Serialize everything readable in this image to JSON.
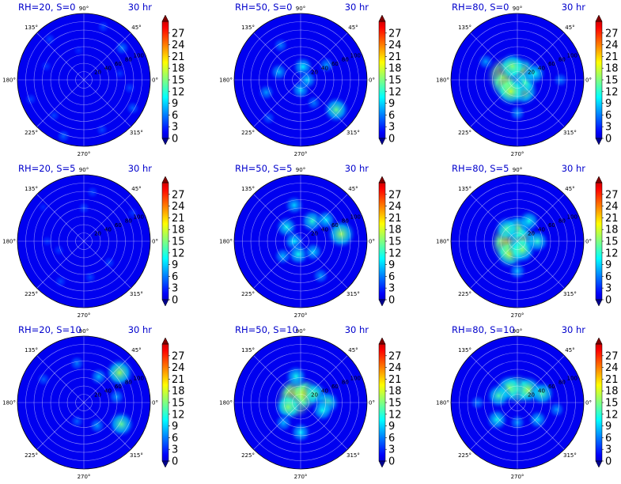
{
  "chart_data": {
    "type": "polar-heatmap",
    "layout": {
      "rows": 3,
      "cols": 3
    },
    "colormap": "jet",
    "colorbar": {
      "min": 0,
      "max": 30,
      "ticks": [
        "0",
        "3",
        "6",
        "9",
        "12",
        "15",
        "18",
        "21",
        "24",
        "27"
      ],
      "extend": "both"
    },
    "angle_labels": [
      "0°",
      "45°",
      "90°",
      "135°",
      "180°",
      "225°",
      "270°",
      "315°"
    ],
    "radial_tick_labels": [
      "20",
      "40",
      "60",
      "80",
      "100"
    ],
    "rings": 8,
    "panels": [
      {
        "title": "RH=20, S=0",
        "time": "30 hr",
        "rh": 20,
        "s": 0,
        "blobs": [
          [
            130,
            80,
            3
          ],
          [
            40,
            75,
            5
          ],
          [
            330,
            85,
            4
          ],
          [
            230,
            70,
            3
          ],
          [
            160,
            60,
            2.5
          ],
          [
            70,
            85,
            3
          ],
          [
            290,
            80,
            3
          ],
          [
            10,
            55,
            2.5
          ],
          [
            200,
            85,
            3
          ],
          [
            250,
            90,
            4
          ],
          [
            100,
            45,
            2
          ],
          [
            350,
            70,
            3
          ]
        ]
      },
      {
        "title": "RH=50, S=0",
        "time": "30 hr",
        "rh": 50,
        "s": 0,
        "blobs": [
          [
            320,
            70,
            13
          ],
          [
            80,
            20,
            9
          ],
          [
            270,
            15,
            8
          ],
          [
            160,
            35,
            7
          ],
          [
            200,
            55,
            6
          ],
          [
            120,
            60,
            5
          ],
          [
            30,
            45,
            6
          ],
          [
            300,
            40,
            5
          ],
          [
            0,
            10,
            8
          ],
          [
            230,
            75,
            4
          ]
        ]
      },
      {
        "title": "RH=80, S=0",
        "time": "30 hr",
        "rh": 80,
        "s": 0,
        "blobs": [
          [
            160,
            20,
            22
          ],
          [
            200,
            18,
            18
          ],
          [
            60,
            15,
            16
          ],
          [
            300,
            20,
            15
          ],
          [
            110,
            22,
            14
          ],
          [
            340,
            12,
            12
          ],
          [
            240,
            20,
            16
          ],
          [
            20,
            28,
            10
          ],
          [
            150,
            55,
            6
          ],
          [
            0,
            65,
            5
          ],
          [
            270,
            50,
            6
          ]
        ]
      },
      {
        "title": "RH=20, S=5",
        "time": "30 hr",
        "rh": 20,
        "s": 5,
        "blobs": [
          [
            90,
            50,
            3
          ],
          [
            80,
            75,
            3
          ],
          [
            180,
            55,
            2.5
          ],
          [
            320,
            50,
            3
          ],
          [
            240,
            70,
            3
          ],
          [
            30,
            85,
            2.5
          ],
          [
            140,
            80,
            2
          ],
          [
            280,
            55,
            3
          ],
          [
            200,
            40,
            2.5
          ]
        ]
      },
      {
        "title": "RH=50, S=5",
        "time": "30 hr",
        "rh": 50,
        "s": 5,
        "blobs": [
          [
            10,
            62,
            15
          ],
          [
            60,
            35,
            11
          ],
          [
            135,
            30,
            10
          ],
          [
            180,
            10,
            9
          ],
          [
            260,
            20,
            10
          ],
          [
            320,
            25,
            8
          ],
          [
            100,
            55,
            8
          ],
          [
            220,
            35,
            7
          ],
          [
            40,
            50,
            9
          ],
          [
            300,
            60,
            6
          ]
        ]
      },
      {
        "title": "RH=80, S=5",
        "time": "30 hr",
        "rh": 80,
        "s": 5,
        "blobs": [
          [
            170,
            12,
            22
          ],
          [
            200,
            15,
            20
          ],
          [
            20,
            8,
            16
          ],
          [
            90,
            20,
            14
          ],
          [
            240,
            22,
            16
          ],
          [
            300,
            15,
            14
          ],
          [
            130,
            25,
            12
          ],
          [
            60,
            35,
            10
          ],
          [
            0,
            30,
            11
          ],
          [
            270,
            45,
            7
          ]
        ]
      },
      {
        "title": "RH=20, S=10",
        "time": "30 hr",
        "rh": 20,
        "s": 10,
        "blobs": [
          [
            40,
            70,
            15
          ],
          [
            330,
            65,
            13
          ],
          [
            300,
            40,
            6
          ],
          [
            100,
            60,
            5
          ],
          [
            60,
            45,
            7
          ],
          [
            10,
            50,
            6
          ],
          [
            250,
            30,
            4
          ],
          [
            150,
            70,
            4
          ]
        ]
      },
      {
        "title": "RH=50, S=10",
        "time": "30 hr",
        "rh": 50,
        "s": 10,
        "blobs": [
          [
            160,
            10,
            22
          ],
          [
            120,
            15,
            20
          ],
          [
            60,
            15,
            18
          ],
          [
            200,
            20,
            14
          ],
          [
            30,
            25,
            12
          ],
          [
            0,
            40,
            12
          ],
          [
            340,
            35,
            10
          ],
          [
            270,
            45,
            9
          ],
          [
            100,
            40,
            10
          ],
          [
            230,
            40,
            7
          ]
        ]
      },
      {
        "title": "RH=80, S=10",
        "time": "30 hr",
        "rh": 80,
        "s": 10,
        "blobs": [
          [
            90,
            20,
            17
          ],
          [
            50,
            25,
            15
          ],
          [
            120,
            25,
            14
          ],
          [
            160,
            30,
            12
          ],
          [
            20,
            40,
            12
          ],
          [
            220,
            40,
            10
          ],
          [
            320,
            40,
            8
          ],
          [
            270,
            30,
            6
          ],
          [
            350,
            60,
            6
          ],
          [
            180,
            60,
            5
          ]
        ]
      }
    ]
  }
}
